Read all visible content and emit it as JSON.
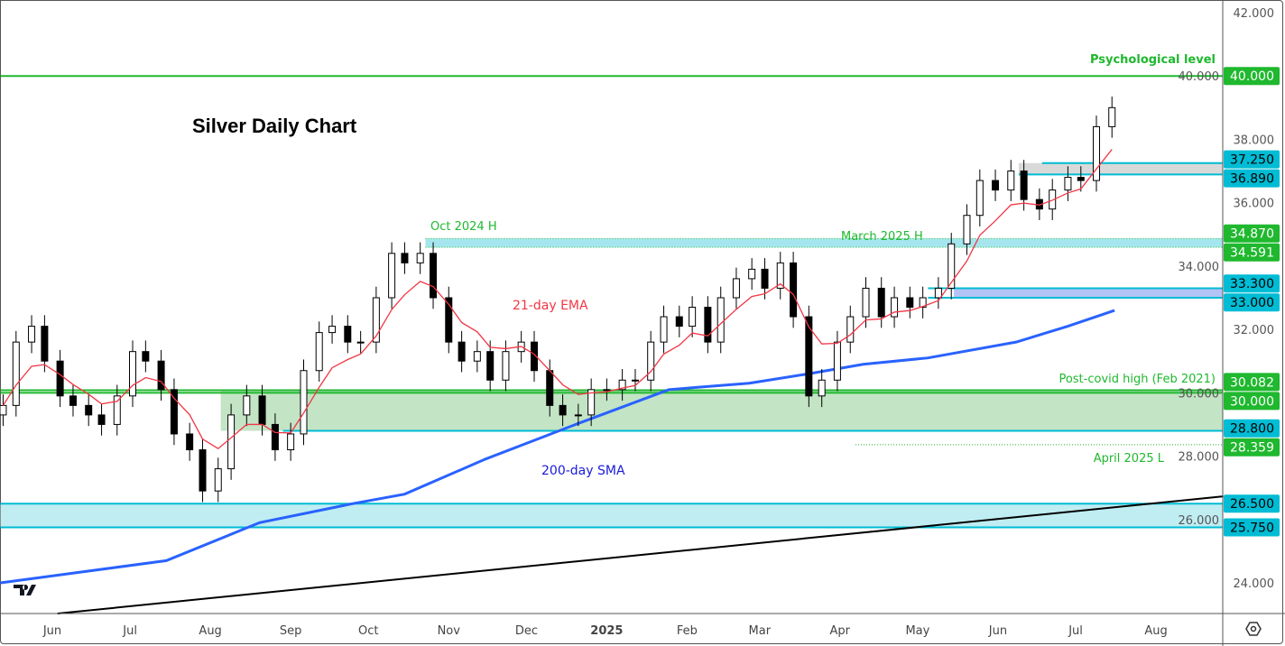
{
  "chart_data": {
    "type": "candlestick",
    "title": "Silver Daily Chart",
    "y_range": [
      23,
      42.3
    ],
    "y_ticks": [
      24,
      26,
      28,
      30,
      32,
      34,
      36,
      38,
      40,
      42
    ],
    "y_tick_format": "0.000",
    "x_range": [
      "2024-05-12",
      "2025-08-27"
    ],
    "x_ticks": [
      {
        "label": "Jun",
        "date": "2024-06-01"
      },
      {
        "label": "Jul",
        "date": "2024-07-01"
      },
      {
        "label": "Aug",
        "date": "2024-08-01"
      },
      {
        "label": "Sep",
        "date": "2024-09-01"
      },
      {
        "label": "Oct",
        "date": "2024-10-01"
      },
      {
        "label": "Nov",
        "date": "2024-11-01"
      },
      {
        "label": "Dec",
        "date": "2024-12-01"
      },
      {
        "label": "2025",
        "date": "2025-01-01",
        "bold": true
      },
      {
        "label": "Feb",
        "date": "2025-02-01"
      },
      {
        "label": "Mar",
        "date": "2025-03-01"
      },
      {
        "label": "Apr",
        "date": "2025-04-01"
      },
      {
        "label": "May",
        "date": "2025-05-01"
      },
      {
        "label": "Jun",
        "date": "2025-06-01"
      },
      {
        "label": "Jul",
        "date": "2025-07-01"
      },
      {
        "label": "Aug",
        "date": "2025-08-01"
      }
    ],
    "closes_start": "2024-05-13",
    "closes_end": "2025-07-15",
    "closes": [
      29.6,
      31.6,
      32.1,
      31.0,
      29.9,
      29.6,
      29.3,
      29.0,
      29.9,
      31.3,
      31.0,
      30.1,
      28.7,
      28.2,
      26.9,
      27.6,
      29.3,
      29.9,
      29.0,
      28.2,
      28.7,
      30.7,
      31.9,
      32.1,
      31.6,
      31.6,
      33.0,
      34.4,
      34.1,
      34.4,
      33.0,
      31.6,
      31.0,
      31.3,
      30.4,
      31.3,
      31.6,
      30.7,
      29.6,
      29.3,
      29.3,
      30.1,
      30.1,
      30.4,
      30.4,
      31.6,
      32.4,
      32.1,
      32.7,
      31.6,
      33.0,
      33.6,
      33.9,
      33.3,
      34.1,
      32.4,
      29.9,
      30.4,
      31.6,
      32.4,
      33.3,
      32.4,
      33.0,
      32.7,
      33.0,
      33.3,
      34.7,
      35.6,
      36.7,
      36.4,
      37.0,
      36.1,
      35.8,
      36.4,
      36.8,
      36.7,
      38.4,
      39.0
    ],
    "ema": {
      "label": "21-day EMA",
      "period_days": 21,
      "color": "#f23645"
    },
    "sma": {
      "label": "200-day SMA",
      "color": "#2962ff",
      "points": [
        [
          "2024-05-12",
          24.0
        ],
        [
          "2024-07-15",
          24.7
        ],
        [
          "2024-08-20",
          25.9
        ],
        [
          "2024-09-25",
          26.5
        ],
        [
          "2024-10-15",
          26.8
        ],
        [
          "2024-11-15",
          27.9
        ],
        [
          "2024-12-20",
          29.0
        ],
        [
          "2025-01-25",
          30.1
        ],
        [
          "2025-02-25",
          30.3
        ],
        [
          "2025-03-20",
          30.6
        ],
        [
          "2025-04-10",
          30.9
        ],
        [
          "2025-05-05",
          31.1
        ],
        [
          "2025-06-08",
          31.6
        ],
        [
          "2025-06-28",
          32.1
        ],
        [
          "2025-07-16",
          32.6
        ]
      ]
    },
    "trendline": {
      "color": "#000000",
      "from": [
        "2024-06-03",
        23.03
      ],
      "to": [
        "2025-08-27",
        26.73
      ]
    },
    "levels": [
      {
        "value": 40.0,
        "label": "40.000",
        "color": "#1fb82e",
        "style": "solid",
        "from": "2024-05-12",
        "annotation": "Psychological level"
      },
      {
        "value": 37.25,
        "label": "37.250",
        "color": "#00bcd4",
        "style": "solid",
        "from": "2025-06-18"
      },
      {
        "value": 36.89,
        "label": "36.890",
        "color": "#00bcd4",
        "style": "solid",
        "from": "2025-06-09"
      },
      {
        "value": 34.87,
        "label": "34.870",
        "color": "#1fb82e",
        "style": "dotted",
        "from": "2024-10-23",
        "annotation": "Oct 2024 H"
      },
      {
        "value": 34.591,
        "label": "34.591",
        "color": "#1fb82e",
        "style": "dotted",
        "from": "2024-10-23",
        "annotation": "March 2025 H"
      },
      {
        "value": 33.3,
        "label": "33.300",
        "color": "#00bcd4",
        "style": "solid",
        "from": "2025-05-05"
      },
      {
        "value": 33.0,
        "label": "33.000",
        "color": "#00bcd4",
        "style": "solid",
        "from": "2025-05-05"
      },
      {
        "value": 30.082,
        "label": "30.082",
        "color": "#1fb82e",
        "style": "solid",
        "from": "2024-05-12",
        "annotation": "Post-covid high (Feb 2021)"
      },
      {
        "value": 30.0,
        "label": "30.000",
        "color": "#1fb82e",
        "style": "solid",
        "from": "2024-05-12"
      },
      {
        "value": 28.8,
        "label": "28.800",
        "color": "#00bcd4",
        "style": "solid",
        "from": "2024-08-29"
      },
      {
        "value": 28.359,
        "label": "28.359",
        "color": "#1fb82e",
        "style": "dotted",
        "from": "2025-04-07",
        "annotation": "April 2025 L"
      },
      {
        "value": 26.5,
        "label": "26.500",
        "color": "#00bcd4",
        "style": "solid",
        "from": "2024-05-12"
      },
      {
        "value": 25.75,
        "label": "25.750",
        "color": "#00bcd4",
        "style": "solid",
        "from": "2024-05-12"
      }
    ],
    "zones": [
      {
        "from_date": "2025-06-09",
        "low": 36.89,
        "high": 37.25,
        "color": "#d9d9d9"
      },
      {
        "from_date": "2024-10-23",
        "low": 34.591,
        "high": 34.87,
        "color": "#a5e6ee"
      },
      {
        "from_date": "2025-05-15",
        "low": 33.0,
        "high": 33.3,
        "color": "#b3c3f5"
      },
      {
        "from_date": "2024-08-05",
        "low": 28.8,
        "high": 30.082,
        "color": "#c3e4c5"
      },
      {
        "from_date": "2024-05-12",
        "low": 25.75,
        "high": 26.5,
        "color": "#bfedf2"
      }
    ]
  },
  "logo": "TV"
}
